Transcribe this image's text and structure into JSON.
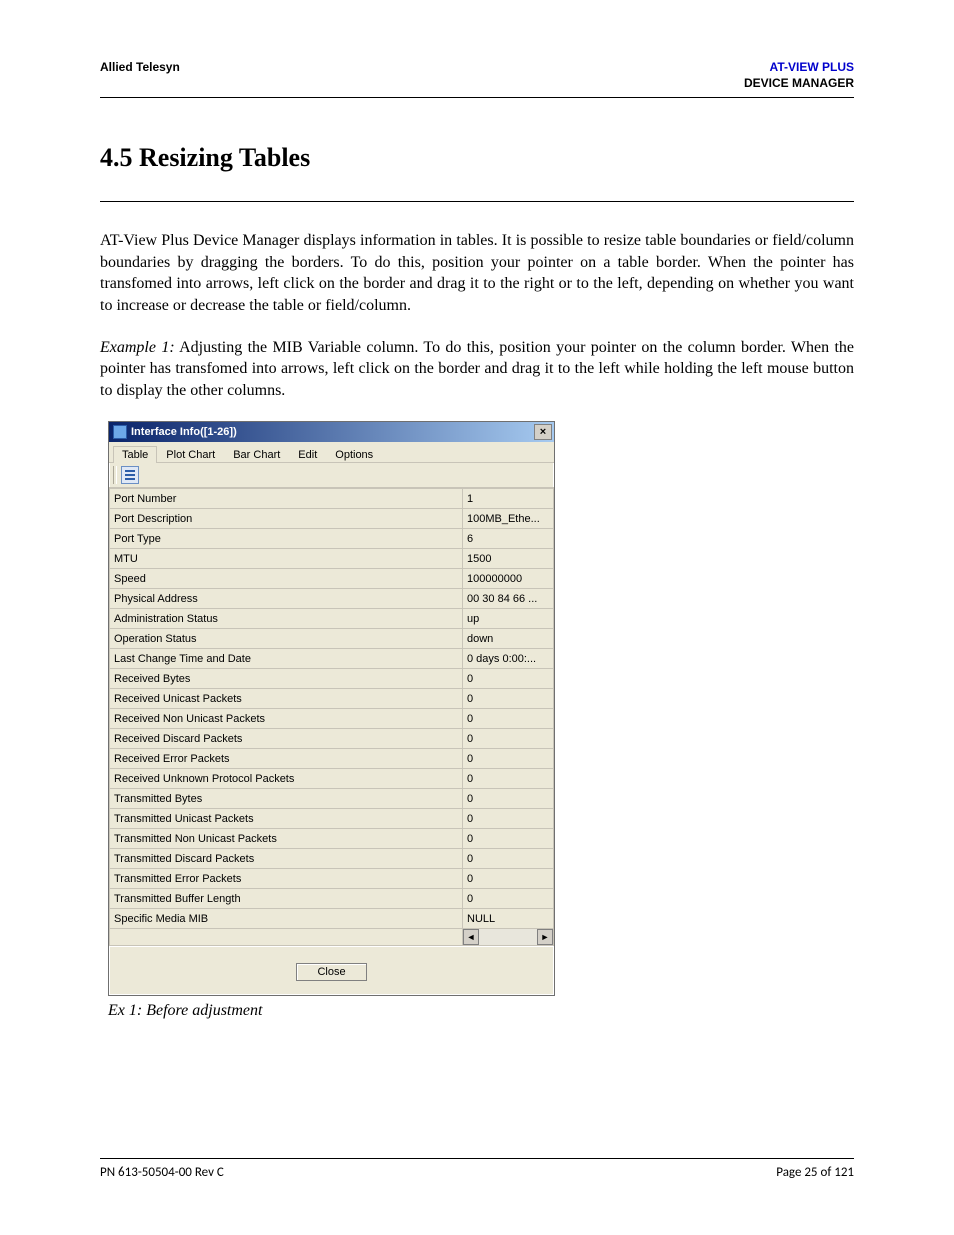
{
  "header": {
    "left": "Allied Telesyn",
    "right_line1": "AT-VIEW PLUS",
    "right_line2": "DEVICE MANAGER"
  },
  "section_heading": "4.5 Resizing Tables",
  "para1": "AT-View Plus Device Manager displays information in tables. It is possible to resize table boundaries or field/column boundaries by dragging the borders. To do this, position your pointer on a table border. When the pointer has transfomed into arrows, left click on the border and drag it to the right or to the left, depending on whether you want to increase or decrease the table or field/column.",
  "example_label": "Example 1:",
  "para2_rest": " Adjusting the MIB Variable column. To do this, position your pointer on the column border. When the pointer has transfomed into arrows, left click on the border and drag it to the left while holding the left mouse button to display the other columns.",
  "window": {
    "title": "Interface Info([1-26])",
    "menu": [
      "Table",
      "Plot Chart",
      "Bar Chart",
      "Edit",
      "Options"
    ],
    "close_button": "Close",
    "close_glyph": "×",
    "rows": [
      {
        "label": "Port Number",
        "value": "1"
      },
      {
        "label": "Port Description",
        "value": "100MB_Ethe..."
      },
      {
        "label": "Port Type",
        "value": "6"
      },
      {
        "label": "MTU",
        "value": "1500"
      },
      {
        "label": "Speed",
        "value": "100000000"
      },
      {
        "label": "Physical Address",
        "value": "00 30 84 66 ..."
      },
      {
        "label": "Administration Status",
        "value": "up"
      },
      {
        "label": "Operation Status",
        "value": "down"
      },
      {
        "label": "Last Change Time and Date",
        "value": "0 days 0:00:..."
      },
      {
        "label": "Received Bytes",
        "value": "0"
      },
      {
        "label": "Received Unicast Packets",
        "value": "0"
      },
      {
        "label": "Received Non Unicast Packets",
        "value": "0"
      },
      {
        "label": "Received Discard Packets",
        "value": "0"
      },
      {
        "label": "Received Error Packets",
        "value": "0"
      },
      {
        "label": "Received Unknown Protocol Packets",
        "value": "0"
      },
      {
        "label": "Transmitted Bytes",
        "value": "0"
      },
      {
        "label": "Transmitted Unicast Packets",
        "value": "0"
      },
      {
        "label": "Transmitted Non Unicast Packets",
        "value": "0"
      },
      {
        "label": "Transmitted Discard Packets",
        "value": "0"
      },
      {
        "label": "Transmitted Error Packets",
        "value": "0"
      },
      {
        "label": "Transmitted Buffer Length",
        "value": "0"
      },
      {
        "label": "Specific Media MIB",
        "value": "NULL"
      }
    ],
    "scroll_left": "◄",
    "scroll_right": "►"
  },
  "caption": "Ex 1: Before adjustment",
  "footer": {
    "left": "PN 613-50504-00 Rev C",
    "right": "Page 25 of 121"
  },
  "colors": {
    "link_blue": "#0000cc",
    "titlebar_start": "#0a246a",
    "titlebar_end": "#a6caf0",
    "win_bg": "#ece9d8",
    "grid": "#c8c4b8"
  }
}
